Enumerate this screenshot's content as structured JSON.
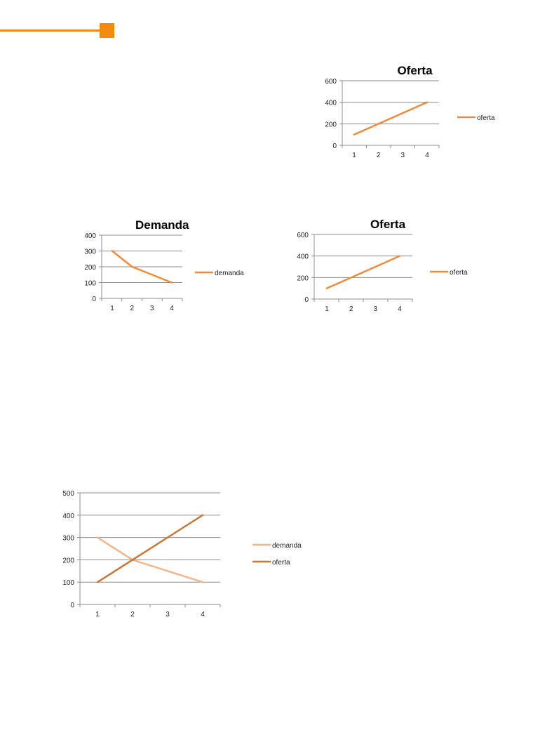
{
  "decor": {
    "accent_color": "#f08a10"
  },
  "chart_data": [
    {
      "type": "line",
      "title": "Oferta",
      "categories": [
        "1",
        "2",
        "3",
        "4"
      ],
      "ylim": [
        0,
        600
      ],
      "yticks": [
        0,
        200,
        400,
        600
      ],
      "grid": true,
      "legend_position": "right",
      "series": [
        {
          "name": "oferta",
          "values": [
            100,
            200,
            300,
            400
          ],
          "color": "#ee8b3a"
        }
      ]
    },
    {
      "type": "line",
      "title": "Demanda",
      "categories": [
        "1",
        "2",
        "3",
        "4"
      ],
      "ylim": [
        0,
        400
      ],
      "yticks": [
        0,
        100,
        200,
        300,
        400
      ],
      "grid": true,
      "legend_position": "right",
      "series": [
        {
          "name": "demanda",
          "values": [
            300,
            200,
            150,
            100
          ],
          "color": "#ee8b3a"
        }
      ]
    },
    {
      "type": "line",
      "title": "Oferta",
      "categories": [
        "1",
        "2",
        "3",
        "4"
      ],
      "ylim": [
        0,
        600
      ],
      "yticks": [
        0,
        200,
        400,
        600
      ],
      "grid": true,
      "legend_position": "right",
      "series": [
        {
          "name": "oferta",
          "values": [
            100,
            200,
            300,
            400
          ],
          "color": "#ee8b3a"
        }
      ]
    },
    {
      "type": "line",
      "title": "",
      "categories": [
        "1",
        "2",
        "3",
        "4"
      ],
      "ylim": [
        0,
        500
      ],
      "yticks": [
        0,
        100,
        200,
        300,
        400,
        500
      ],
      "grid": true,
      "legend_position": "right",
      "series": [
        {
          "name": "demanda",
          "values": [
            300,
            200,
            150,
            100
          ],
          "color": "#f0b58a"
        },
        {
          "name": "oferta",
          "values": [
            100,
            200,
            300,
            400
          ],
          "color": "#c8773a"
        }
      ]
    }
  ]
}
